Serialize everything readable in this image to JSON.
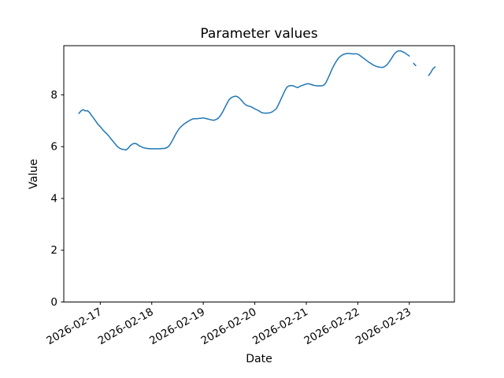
{
  "figure": {
    "background": "#ffffff",
    "plot_border_color": "#000000"
  },
  "chart_data": {
    "type": "line",
    "title": "Parameter values",
    "xlabel": "Date",
    "ylabel": "Value",
    "grid": false,
    "legend": "none",
    "xlim": [
      "2026-02-16T07:00",
      "2026-02-23T21:00"
    ],
    "ylim": [
      0,
      9.9
    ],
    "x_ticks": [
      "2026-02-17",
      "2026-02-18",
      "2026-02-19",
      "2026-02-20",
      "2026-02-21",
      "2026-02-22",
      "2026-02-23"
    ],
    "x_tick_rotation_deg": 30,
    "y_ticks": [
      0,
      2,
      4,
      6,
      8
    ],
    "series": [
      {
        "name": "Parameter values",
        "color": "#1f77b4",
        "line_width": 1.5,
        "start": "2026-02-16T14:00",
        "step_hours": 1,
        "values": [
          7.28,
          7.38,
          7.43,
          7.38,
          7.39,
          7.32,
          7.2,
          7.09,
          6.97,
          6.86,
          6.77,
          6.67,
          6.58,
          6.5,
          6.41,
          6.3,
          6.2,
          6.1,
          6.0,
          5.94,
          5.9,
          5.89,
          5.87,
          5.94,
          6.04,
          6.1,
          6.13,
          6.1,
          6.04,
          6.0,
          5.96,
          5.94,
          5.93,
          5.92,
          5.92,
          5.92,
          5.92,
          5.92,
          5.92,
          5.93,
          5.93,
          5.96,
          6.02,
          6.15,
          6.3,
          6.46,
          6.6,
          6.72,
          6.8,
          6.87,
          6.93,
          6.98,
          7.03,
          7.07,
          7.08,
          7.08,
          7.09,
          7.1,
          7.11,
          7.09,
          7.07,
          7.05,
          7.03,
          7.02,
          7.05,
          7.1,
          7.2,
          7.34,
          7.5,
          7.66,
          7.81,
          7.89,
          7.93,
          7.95,
          7.93,
          7.86,
          7.77,
          7.67,
          7.6,
          7.57,
          7.55,
          7.51,
          7.46,
          7.42,
          7.38,
          7.32,
          7.3,
          7.29,
          7.3,
          7.31,
          7.34,
          7.4,
          7.46,
          7.62,
          7.8,
          7.98,
          8.16,
          8.3,
          8.35,
          8.36,
          8.35,
          8.31,
          8.28,
          8.33,
          8.36,
          8.39,
          8.42,
          8.43,
          8.41,
          8.38,
          8.36,
          8.35,
          8.35,
          8.35,
          8.37,
          8.45,
          8.62,
          8.8,
          9.0,
          9.16,
          9.3,
          9.42,
          9.5,
          9.55,
          9.58,
          9.6,
          9.6,
          9.59,
          9.58,
          9.59,
          9.57,
          9.52,
          9.46,
          9.4,
          9.33,
          9.27,
          9.22,
          9.16,
          9.12,
          9.09,
          9.07,
          9.06,
          9.07,
          9.12,
          9.2,
          9.32,
          9.45,
          9.58,
          9.66,
          9.7,
          9.7,
          9.66,
          9.62,
          9.56,
          9.5,
          null,
          9.22,
          9.13,
          null,
          null,
          null,
          null,
          null,
          8.75,
          8.86,
          9.01,
          9.08
        ]
      }
    ]
  }
}
